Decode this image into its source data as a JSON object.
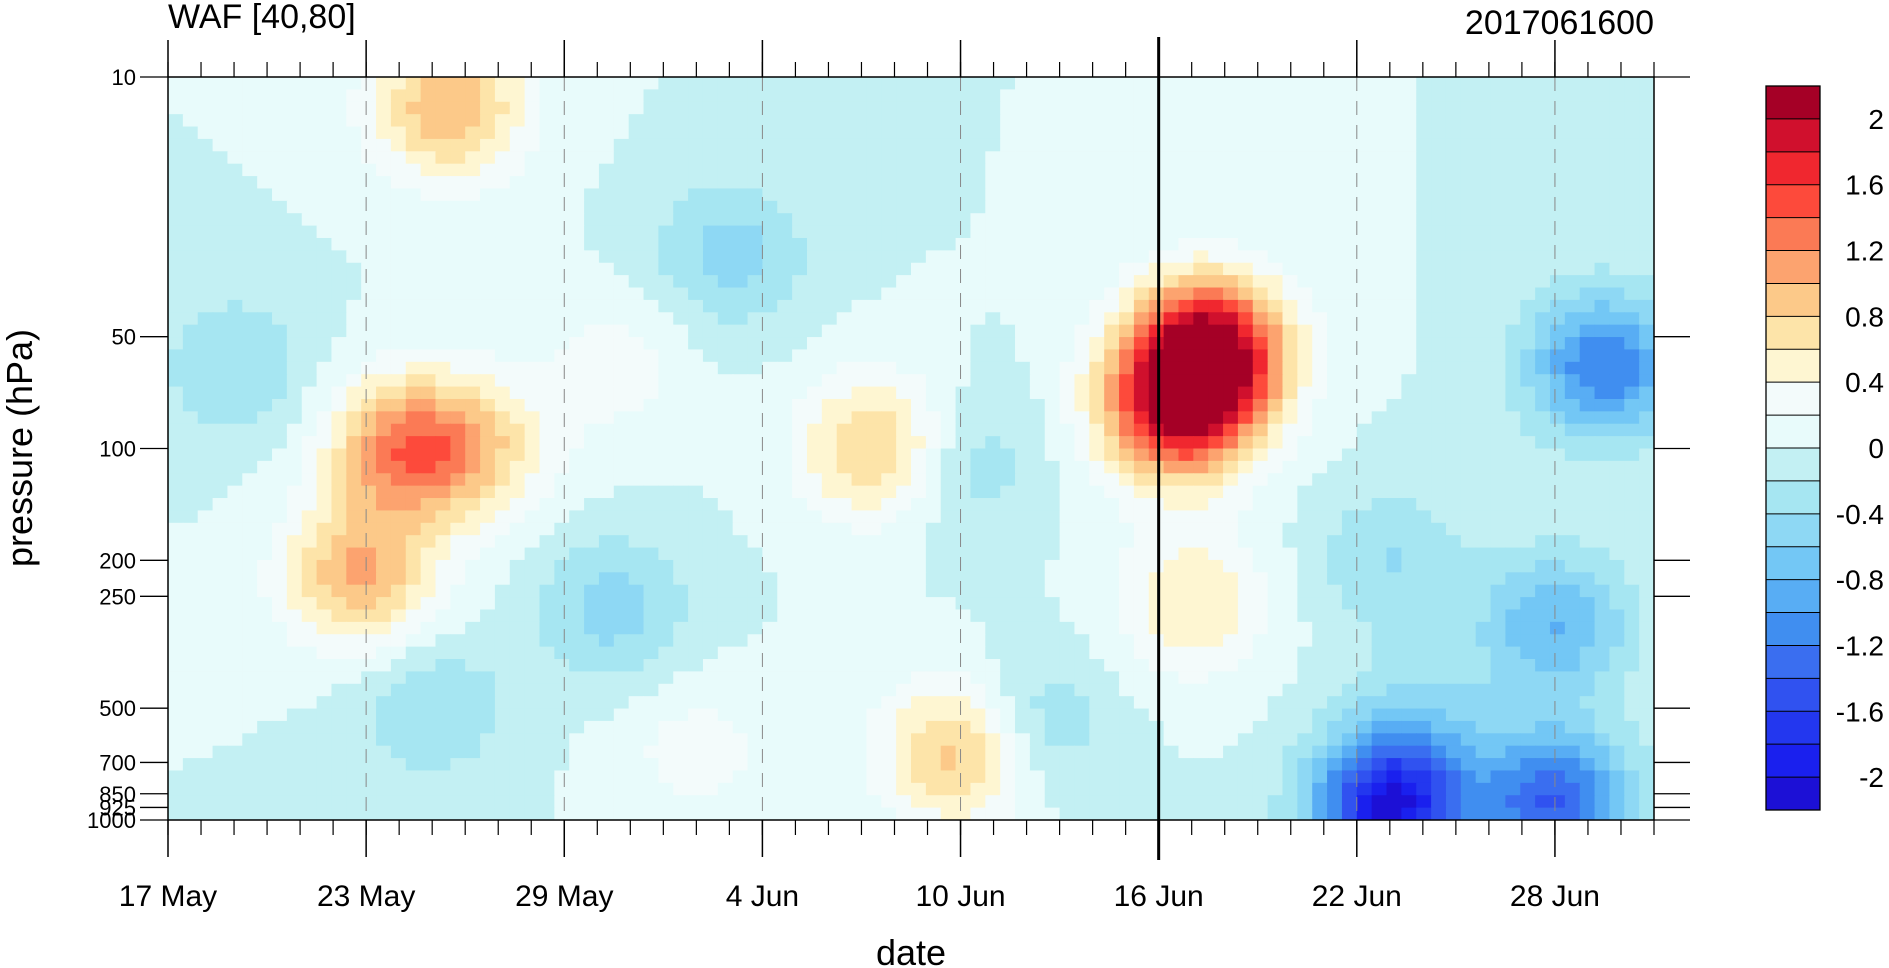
{
  "chart_data": {
    "type": "heatmap",
    "title": "WAF [40,80]",
    "subtitle": "2017061600",
    "xlabel": "date",
    "ylabel": "pressure (hPa)",
    "x_ticks": [
      "17 May",
      "23 May",
      "29 May",
      "4 Jun",
      "10 Jun",
      "16 Jun",
      "22 Jun",
      "28 Jun"
    ],
    "x_tick_days": [
      0,
      6,
      12,
      18,
      24,
      30,
      36,
      42
    ],
    "x_range_days": [
      0,
      45
    ],
    "y_ticks": [
      "10",
      "50",
      "100",
      "200",
      "250",
      "500",
      "700",
      "850",
      "925",
      "1000"
    ],
    "y_tick_values": [
      10,
      50,
      100,
      200,
      250,
      500,
      700,
      850,
      925,
      1000
    ],
    "y_scale": "log",
    "y_range": [
      10,
      1000
    ],
    "vertical_marker_day": 30,
    "colorbar": {
      "labels": [
        "2",
        "1.6",
        "1.2",
        "0.8",
        "0.4",
        "0",
        "-0.4",
        "-0.8",
        "-1.2",
        "-1.6",
        "-2"
      ],
      "colors": [
        "#a50026",
        "#d0102d",
        "#f0272f",
        "#fd4a3b",
        "#fb7a55",
        "#fca36f",
        "#fcc989",
        "#fde4a9",
        "#fef6d2",
        "#f3fbfb",
        "#e8fbfb",
        "#c3f0f3",
        "#a6e6f2",
        "#8ed8f4",
        "#73c7f5",
        "#58adf4",
        "#408ef0",
        "#3a6ef0",
        "#3052f0",
        "#2337ef",
        "#1a20ee",
        "#1c10d6"
      ]
    },
    "field_features": [
      {
        "day": 31.5,
        "p": 55,
        "value": 2.2
      },
      {
        "day": 30.5,
        "p": 80,
        "value": 1.6
      },
      {
        "day": 7.2,
        "p": 100,
        "value": 1.2
      },
      {
        "day": 5.8,
        "p": 220,
        "value": 1.0
      },
      {
        "day": 8.5,
        "p": 12,
        "value": 1.0
      },
      {
        "day": 24,
        "p": 650,
        "value": 1.0
      },
      {
        "day": 21.5,
        "p": 100,
        "value": 0.9
      },
      {
        "day": 9.5,
        "p": 100,
        "value": 0.6
      },
      {
        "day": 31,
        "p": 260,
        "value": 0.6
      },
      {
        "day": 16,
        "p": 650,
        "value": 0.3
      },
      {
        "day": 13.5,
        "p": 60,
        "value": 0.3
      },
      {
        "day": 2,
        "p": 60,
        "value": -0.4
      },
      {
        "day": 17,
        "p": 30,
        "value": -0.5
      },
      {
        "day": 24,
        "p": 110,
        "value": -0.4
      },
      {
        "day": 13.5,
        "p": 270,
        "value": -0.5
      },
      {
        "day": 8,
        "p": 500,
        "value": -0.4
      },
      {
        "day": 26,
        "p": 560,
        "value": -0.5
      },
      {
        "day": 37,
        "p": 200,
        "value": -0.4
      },
      {
        "day": 38,
        "p": 550,
        "value": -0.4
      },
      {
        "day": 43.5,
        "p": 60,
        "value": -1.2
      },
      {
        "day": 42,
        "p": 300,
        "value": -0.8
      },
      {
        "day": 37,
        "p": 940,
        "value": -2.0
      },
      {
        "day": 42,
        "p": 900,
        "value": -1.4
      }
    ]
  }
}
